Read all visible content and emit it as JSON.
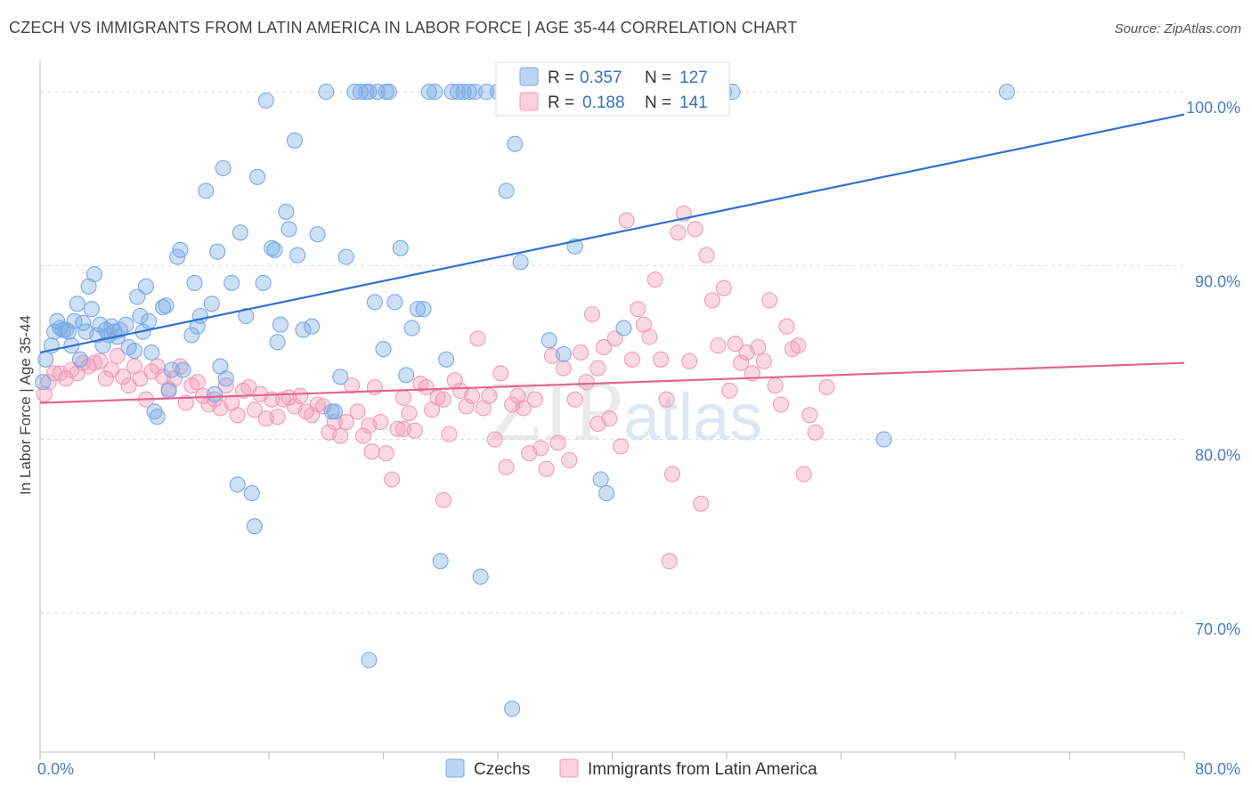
{
  "title": "CZECH VS IMMIGRANTS FROM LATIN AMERICA IN LABOR FORCE | AGE 35-44 CORRELATION CHART",
  "source": "Source: ZipAtlas.com",
  "watermark": {
    "zip": "ZIP",
    "atlas": "atlas"
  },
  "chart_data": {
    "type": "scatter",
    "xlabel": "",
    "ylabel": "In Labor Force | Age 35-44",
    "xlim": [
      0,
      80
    ],
    "ylim": [
      62,
      101.8
    ],
    "x_tick_labels": [
      "0.0%",
      "80.0%"
    ],
    "y_ticks": [
      70,
      80,
      90,
      100
    ],
    "y_tick_labels": [
      "70.0%",
      "80.0%",
      "90.0%",
      "100.0%"
    ],
    "grid": true,
    "colors": {
      "czechs": "#7aaae6",
      "latin": "#f19ab8",
      "czechs_line": "#2f72cf",
      "latin_line": "#e46492",
      "tick": "#4a7cc7"
    },
    "stats": [
      {
        "series": "Czechs",
        "r_label": "R =",
        "r": "0.357",
        "n_label": "N =",
        "n": "127"
      },
      {
        "series": "Immigrants from Latin America",
        "r_label": "R =",
        "r": "0.188",
        "n_label": "N =",
        "n": "141"
      }
    ],
    "legend": [
      "Czechs",
      "Immigrants from Latin America"
    ],
    "series": [
      {
        "name": "Czechs",
        "trend": {
          "x": [
            0,
            80
          ],
          "y": [
            85.0,
            98.7
          ]
        },
        "points": [
          [
            0.4,
            84.6
          ],
          [
            0.8,
            85.4
          ],
          [
            1.0,
            86.2
          ],
          [
            1.2,
            86.8
          ],
          [
            1.4,
            86.4
          ],
          [
            1.6,
            86.3
          ],
          [
            1.8,
            86.3
          ],
          [
            2.0,
            86.2
          ],
          [
            2.2,
            85.4
          ],
          [
            2.4,
            86.8
          ],
          [
            2.6,
            87.8
          ],
          [
            2.8,
            84.6
          ],
          [
            3.0,
            86.7
          ],
          [
            3.2,
            86.2
          ],
          [
            3.4,
            88.8
          ],
          [
            3.6,
            87.5
          ],
          [
            3.8,
            89.5
          ],
          [
            4.0,
            86.0
          ],
          [
            4.2,
            86.6
          ],
          [
            4.4,
            85.4
          ],
          [
            4.6,
            86.3
          ],
          [
            4.8,
            86.0
          ],
          [
            5.0,
            86.5
          ],
          [
            5.2,
            86.2
          ],
          [
            5.4,
            85.9
          ],
          [
            5.6,
            86.3
          ],
          [
            6.0,
            86.6
          ],
          [
            6.2,
            85.3
          ],
          [
            6.6,
            85.1
          ],
          [
            6.8,
            88.2
          ],
          [
            7.0,
            87.1
          ],
          [
            7.2,
            86.2
          ],
          [
            7.4,
            88.8
          ],
          [
            7.6,
            86.8
          ],
          [
            7.8,
            85.0
          ],
          [
            8.0,
            81.6
          ],
          [
            8.2,
            81.3
          ],
          [
            8.6,
            87.6
          ],
          [
            8.8,
            87.7
          ],
          [
            9.0,
            82.8
          ],
          [
            9.2,
            84.0
          ],
          [
            9.6,
            90.5
          ],
          [
            9.8,
            90.9
          ],
          [
            10.0,
            84.0
          ],
          [
            10.6,
            86.0
          ],
          [
            10.8,
            89.0
          ],
          [
            11.0,
            86.5
          ],
          [
            11.2,
            87.1
          ],
          [
            11.6,
            94.3
          ],
          [
            12.0,
            87.8
          ],
          [
            12.2,
            82.6
          ],
          [
            12.4,
            90.8
          ],
          [
            12.6,
            84.2
          ],
          [
            12.8,
            95.6
          ],
          [
            13.0,
            83.5
          ],
          [
            13.4,
            89.0
          ],
          [
            13.8,
            77.4
          ],
          [
            14.0,
            91.9
          ],
          [
            14.4,
            87.1
          ],
          [
            14.8,
            76.9
          ],
          [
            15.0,
            75.0
          ],
          [
            15.2,
            95.1
          ],
          [
            15.6,
            89.0
          ],
          [
            15.8,
            99.5
          ],
          [
            16.2,
            91.0
          ],
          [
            16.4,
            90.9
          ],
          [
            16.6,
            85.6
          ],
          [
            16.8,
            86.6
          ],
          [
            17.2,
            93.1
          ],
          [
            17.4,
            92.1
          ],
          [
            17.8,
            97.2
          ],
          [
            18.0,
            90.6
          ],
          [
            18.4,
            86.3
          ],
          [
            19.0,
            86.5
          ],
          [
            19.4,
            91.8
          ],
          [
            20.0,
            100.0
          ],
          [
            20.4,
            81.6
          ],
          [
            20.6,
            81.6
          ],
          [
            21.0,
            83.6
          ],
          [
            21.4,
            90.5
          ],
          [
            22.0,
            100.0
          ],
          [
            22.4,
            100.0
          ],
          [
            22.8,
            100.0
          ],
          [
            23.0,
            100.0
          ],
          [
            23.4,
            87.9
          ],
          [
            23.6,
            100.0
          ],
          [
            24.0,
            85.2
          ],
          [
            24.2,
            100.0
          ],
          [
            24.4,
            100.0
          ],
          [
            24.8,
            87.9
          ],
          [
            25.2,
            91.0
          ],
          [
            25.6,
            83.7
          ],
          [
            26.0,
            86.4
          ],
          [
            26.4,
            87.5
          ],
          [
            26.8,
            87.5
          ],
          [
            27.2,
            100.0
          ],
          [
            27.6,
            100.0
          ],
          [
            28.0,
            73.0
          ],
          [
            28.4,
            84.6
          ],
          [
            28.8,
            100.0
          ],
          [
            29.2,
            100.0
          ],
          [
            29.6,
            100.0
          ],
          [
            30.0,
            100.0
          ],
          [
            30.4,
            100.0
          ],
          [
            30.8,
            72.1
          ],
          [
            31.2,
            100.0
          ],
          [
            32.0,
            100.0
          ],
          [
            32.6,
            94.3
          ],
          [
            33.2,
            97.0
          ],
          [
            33.6,
            90.2
          ],
          [
            34.0,
            100.0
          ],
          [
            34.8,
            100.0
          ],
          [
            35.6,
            85.7
          ],
          [
            36.6,
            84.9
          ],
          [
            37.4,
            91.1
          ],
          [
            38.0,
            100.0
          ],
          [
            39.2,
            77.7
          ],
          [
            39.6,
            76.9
          ],
          [
            40.0,
            100.0
          ],
          [
            40.8,
            86.4
          ],
          [
            44.0,
            100.0
          ],
          [
            46.6,
            100.0
          ],
          [
            47.8,
            100.0
          ],
          [
            48.4,
            100.0
          ],
          [
            59.0,
            80.0
          ],
          [
            67.6,
            100.0
          ],
          [
            23.0,
            67.3
          ],
          [
            33.0,
            64.5
          ],
          [
            0.2,
            83.3
          ]
        ]
      },
      {
        "name": "Immigrants from Latin America",
        "trend": {
          "x": [
            0,
            80
          ],
          "y": [
            82.1,
            84.4
          ]
        },
        "points": [
          [
            0.3,
            82.6
          ],
          [
            0.6,
            83.3
          ],
          [
            1.0,
            83.8
          ],
          [
            1.4,
            83.8
          ],
          [
            1.8,
            83.5
          ],
          [
            2.2,
            84.0
          ],
          [
            2.6,
            83.8
          ],
          [
            3.0,
            84.4
          ],
          [
            3.4,
            84.2
          ],
          [
            3.8,
            84.4
          ],
          [
            4.2,
            84.5
          ],
          [
            4.6,
            83.5
          ],
          [
            5.0,
            84.0
          ],
          [
            5.4,
            84.8
          ],
          [
            5.8,
            83.6
          ],
          [
            6.2,
            83.1
          ],
          [
            6.6,
            84.2
          ],
          [
            7.0,
            83.5
          ],
          [
            7.4,
            82.3
          ],
          [
            7.8,
            83.9
          ],
          [
            8.2,
            84.2
          ],
          [
            8.6,
            83.6
          ],
          [
            9.0,
            82.9
          ],
          [
            9.4,
            83.5
          ],
          [
            9.8,
            84.2
          ],
          [
            10.2,
            82.1
          ],
          [
            10.6,
            83.1
          ],
          [
            11.0,
            83.3
          ],
          [
            11.4,
            82.5
          ],
          [
            11.8,
            82.0
          ],
          [
            12.2,
            82.3
          ],
          [
            12.6,
            81.8
          ],
          [
            13.0,
            83.1
          ],
          [
            13.4,
            82.1
          ],
          [
            13.8,
            81.4
          ],
          [
            14.2,
            82.8
          ],
          [
            14.6,
            83.0
          ],
          [
            15.0,
            81.7
          ],
          [
            15.4,
            82.6
          ],
          [
            15.8,
            81.2
          ],
          [
            16.2,
            82.3
          ],
          [
            16.6,
            81.3
          ],
          [
            17.0,
            82.3
          ],
          [
            17.4,
            82.4
          ],
          [
            17.8,
            81.9
          ],
          [
            18.2,
            82.5
          ],
          [
            18.6,
            81.6
          ],
          [
            19.0,
            81.4
          ],
          [
            19.4,
            82.0
          ],
          [
            19.8,
            81.9
          ],
          [
            20.2,
            80.4
          ],
          [
            20.6,
            81.0
          ],
          [
            21.0,
            80.2
          ],
          [
            21.4,
            81.0
          ],
          [
            21.8,
            83.1
          ],
          [
            22.2,
            81.6
          ],
          [
            22.6,
            80.2
          ],
          [
            23.0,
            80.8
          ],
          [
            23.4,
            83.0
          ],
          [
            23.8,
            81.0
          ],
          [
            24.2,
            79.2
          ],
          [
            24.6,
            77.7
          ],
          [
            25.0,
            80.6
          ],
          [
            25.4,
            82.4
          ],
          [
            25.8,
            81.5
          ],
          [
            26.2,
            80.5
          ],
          [
            26.6,
            83.2
          ],
          [
            27.0,
            83.0
          ],
          [
            27.4,
            81.7
          ],
          [
            27.8,
            82.4
          ],
          [
            28.2,
            82.3
          ],
          [
            28.6,
            80.3
          ],
          [
            29.0,
            83.4
          ],
          [
            29.4,
            82.8
          ],
          [
            29.8,
            81.9
          ],
          [
            30.2,
            82.5
          ],
          [
            30.6,
            85.8
          ],
          [
            31.0,
            81.8
          ],
          [
            31.4,
            82.5
          ],
          [
            31.8,
            80.0
          ],
          [
            32.2,
            83.8
          ],
          [
            32.6,
            78.4
          ],
          [
            33.0,
            82.0
          ],
          [
            33.4,
            82.5
          ],
          [
            33.8,
            81.8
          ],
          [
            34.2,
            79.2
          ],
          [
            34.6,
            82.3
          ],
          [
            35.0,
            79.5
          ],
          [
            35.4,
            78.3
          ],
          [
            35.8,
            84.8
          ],
          [
            36.2,
            79.8
          ],
          [
            36.6,
            84.1
          ],
          [
            37.0,
            78.8
          ],
          [
            37.4,
            82.3
          ],
          [
            37.8,
            85.0
          ],
          [
            38.2,
            83.3
          ],
          [
            38.6,
            87.2
          ],
          [
            39.0,
            84.1
          ],
          [
            39.4,
            85.3
          ],
          [
            39.8,
            81.2
          ],
          [
            40.2,
            85.8
          ],
          [
            40.6,
            79.6
          ],
          [
            41.0,
            92.6
          ],
          [
            41.4,
            84.6
          ],
          [
            41.8,
            87.5
          ],
          [
            42.2,
            86.6
          ],
          [
            42.6,
            85.9
          ],
          [
            43.0,
            89.2
          ],
          [
            43.4,
            84.6
          ],
          [
            43.8,
            82.3
          ],
          [
            44.2,
            78.0
          ],
          [
            44.6,
            91.9
          ],
          [
            45.0,
            93.0
          ],
          [
            45.4,
            84.5
          ],
          [
            45.8,
            92.1
          ],
          [
            46.2,
            76.3
          ],
          [
            46.6,
            90.6
          ],
          [
            47.0,
            88.0
          ],
          [
            47.4,
            85.4
          ],
          [
            47.8,
            88.7
          ],
          [
            48.2,
            82.8
          ],
          [
            48.6,
            85.5
          ],
          [
            49.0,
            84.4
          ],
          [
            49.4,
            85.0
          ],
          [
            49.8,
            83.8
          ],
          [
            50.2,
            85.3
          ],
          [
            50.6,
            84.5
          ],
          [
            51.0,
            88.0
          ],
          [
            51.4,
            83.1
          ],
          [
            51.8,
            82.0
          ],
          [
            52.2,
            86.5
          ],
          [
            52.6,
            85.2
          ],
          [
            53.0,
            85.4
          ],
          [
            53.4,
            78.0
          ],
          [
            53.8,
            81.4
          ],
          [
            54.2,
            80.4
          ],
          [
            55.0,
            83.0
          ],
          [
            23.2,
            79.3
          ],
          [
            25.4,
            80.6
          ],
          [
            28.2,
            76.5
          ],
          [
            39.0,
            80.9
          ],
          [
            44.0,
            73.0
          ]
        ]
      }
    ]
  }
}
